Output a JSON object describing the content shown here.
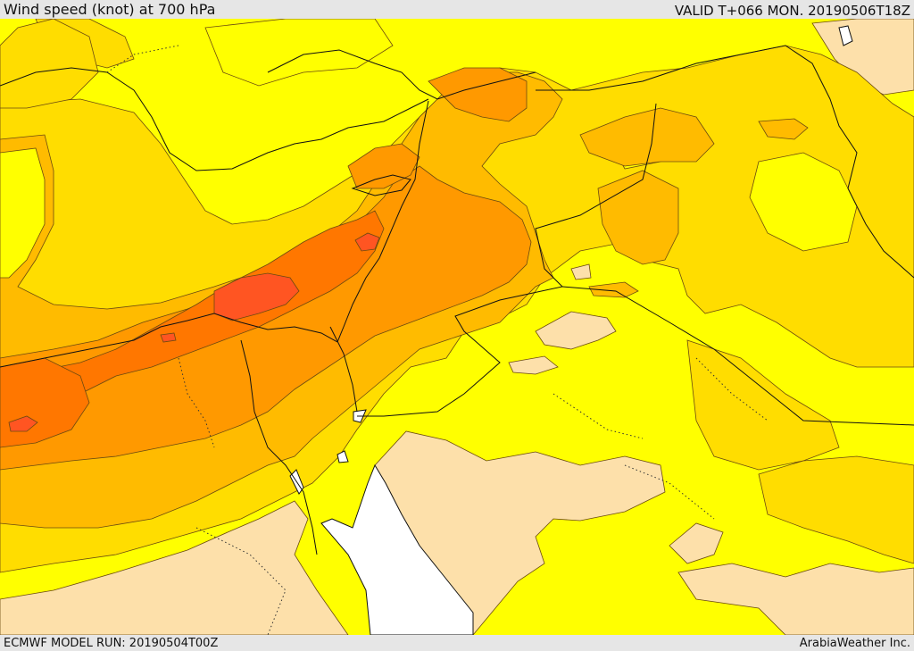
{
  "header": {
    "title": "Wind speed (knot) at 700 hPa",
    "valid": "VALID T+066 MON. 20190506T18Z"
  },
  "footer": {
    "model_run": "ECMWF MODEL RUN: 20190504T00Z",
    "credit": "ArabiaWeather Inc."
  },
  "map": {
    "colors": {
      "lightest": "#fde0aa",
      "yellow": "#ffff00",
      "gold": "#ffdd00",
      "amber": "#ffbb00",
      "orange": "#ff9900",
      "dark_orange": "#ff7700",
      "red_orange": "#ff5522",
      "sea": "#ffffff"
    }
  }
}
